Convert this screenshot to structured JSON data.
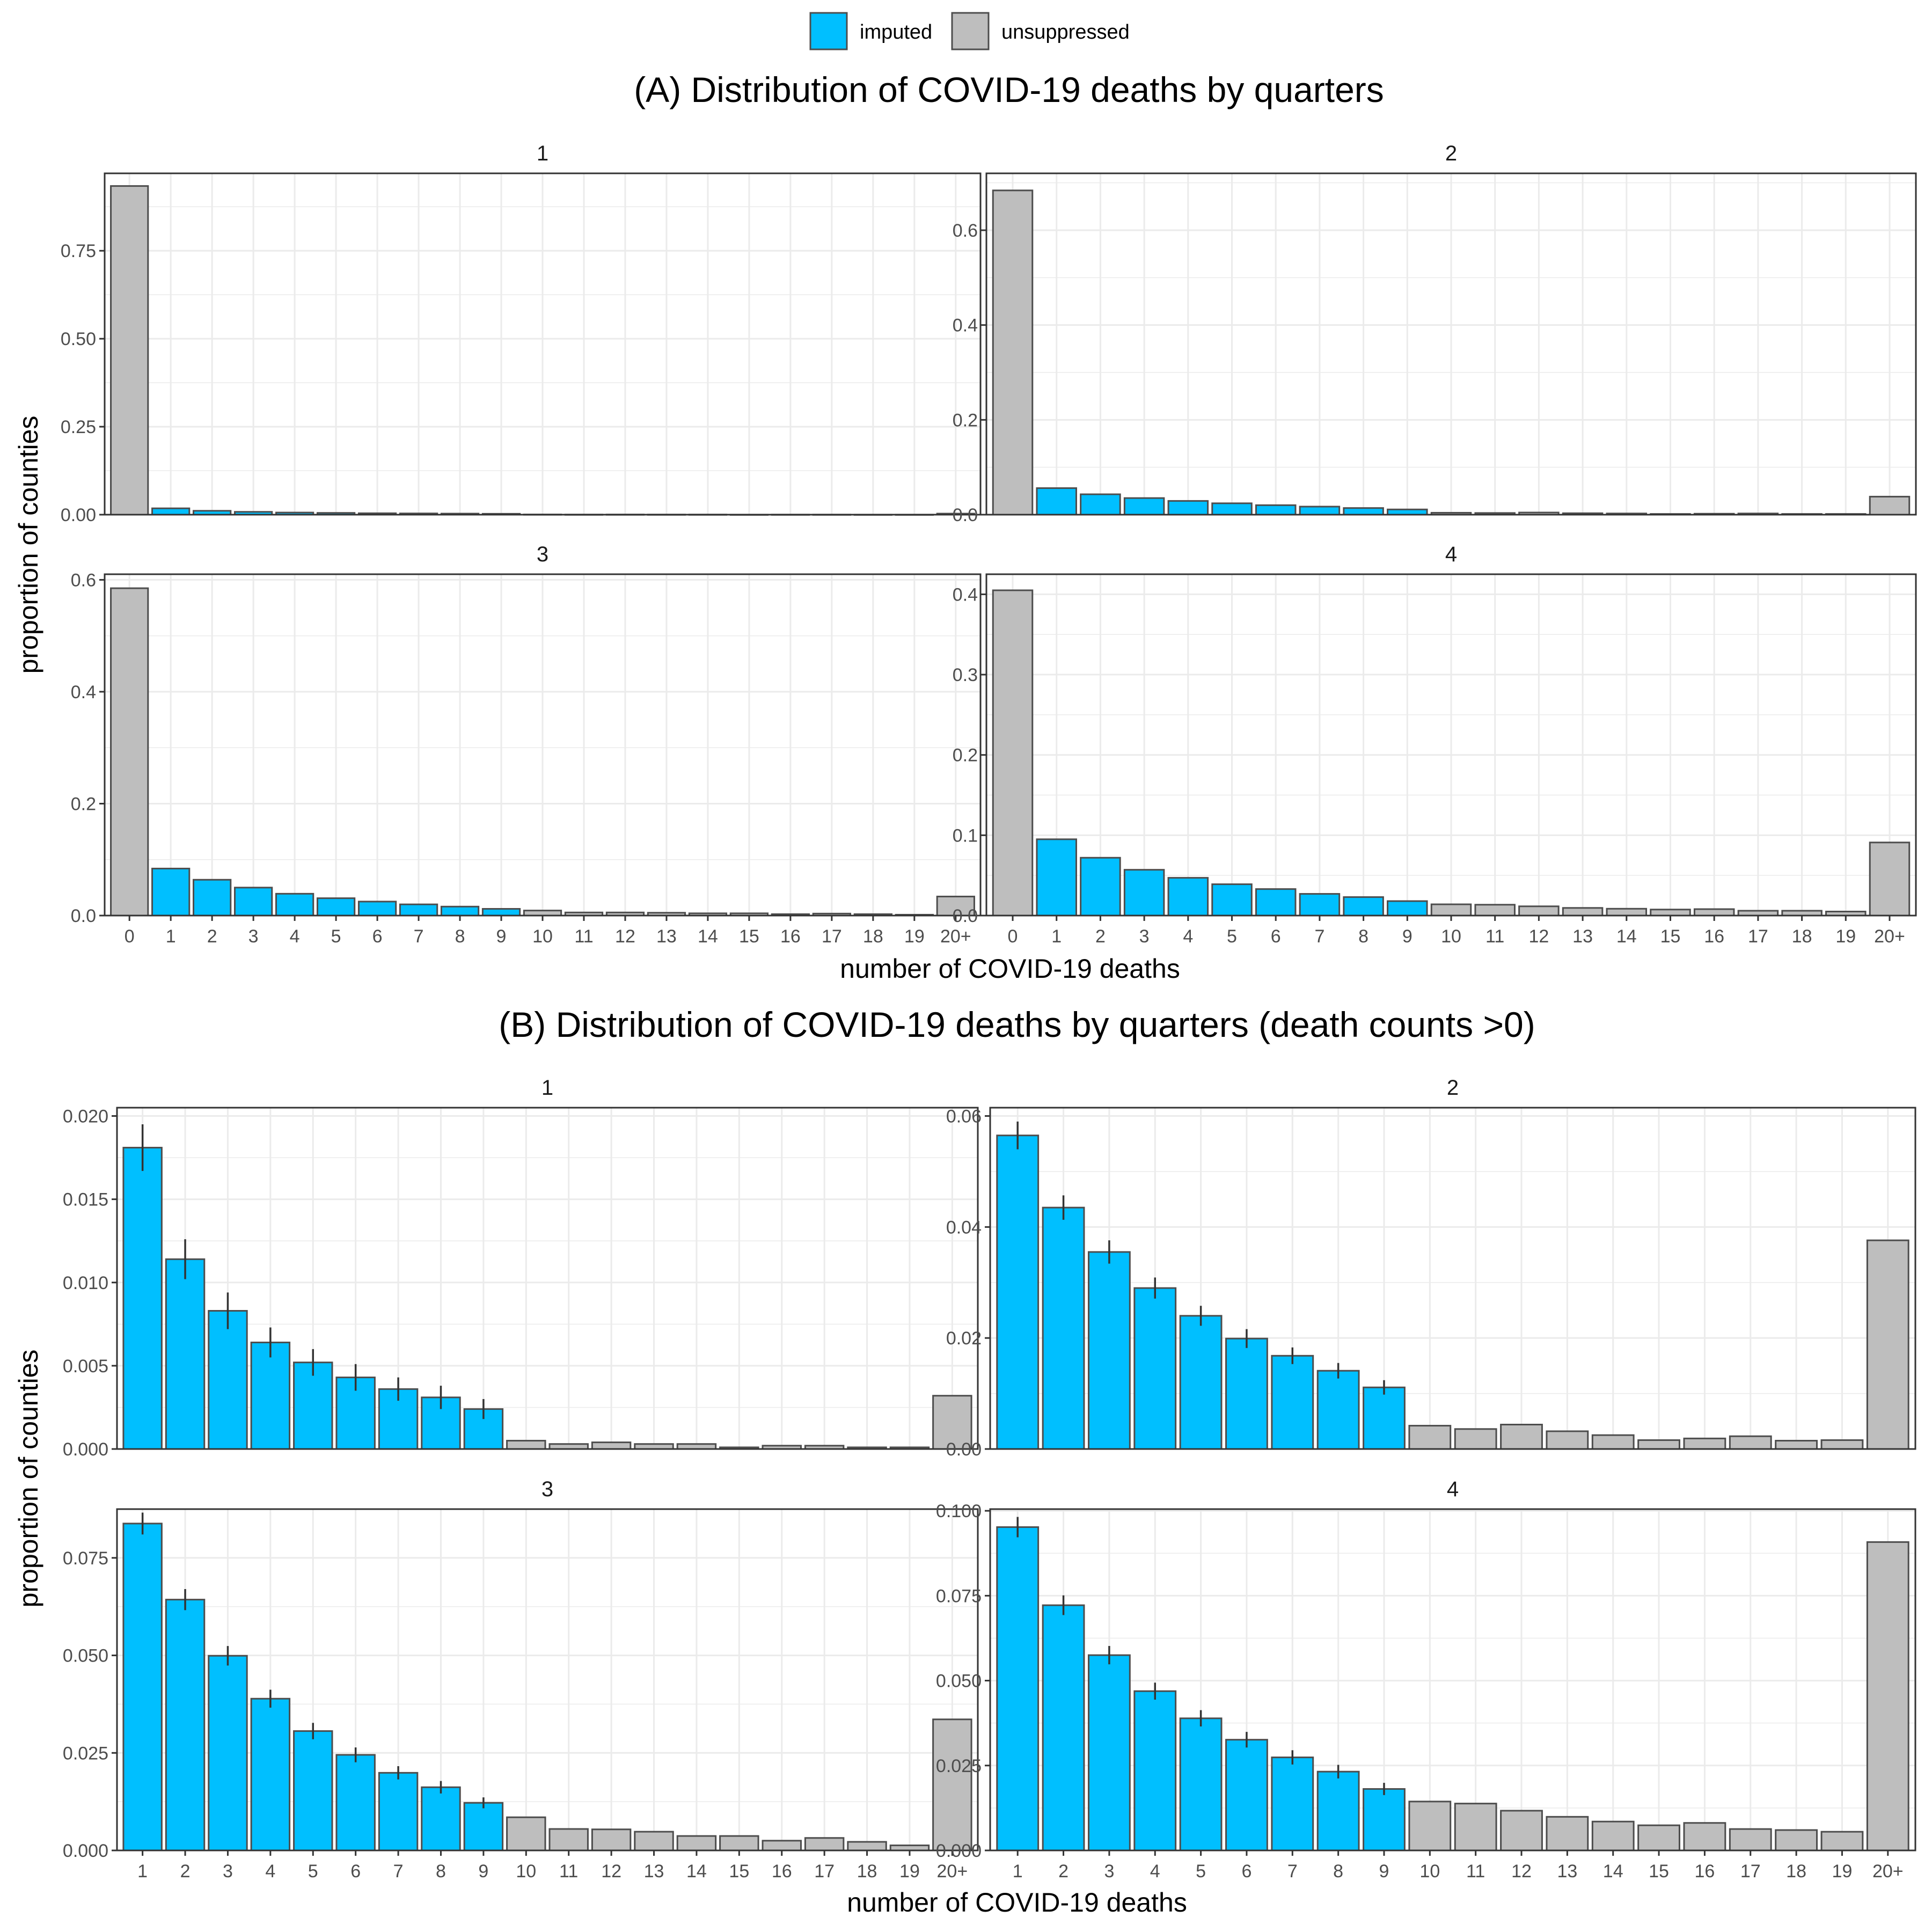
{
  "legend": {
    "items": [
      {
        "label": "imputed",
        "color": "#00BFFF"
      },
      {
        "label": "unsuppressed",
        "color": "#BEBEBE"
      }
    ]
  },
  "colors": {
    "imputed": "#00BFFF",
    "unsuppressed": "#BEBEBE",
    "bar_outline": "#4D4D4D",
    "grid": "#EBEBEB"
  },
  "shared_ylabel": "proportion of counties",
  "chart_data": [
    {
      "type": "bar",
      "title": "(A) Distribution of COVID-19 deaths by quarters",
      "xlabel": "number of COVID-19 deaths",
      "ylabel": "proportion of counties",
      "categories": [
        "0",
        "1",
        "2",
        "3",
        "4",
        "5",
        "6",
        "7",
        "8",
        "9",
        "10",
        "11",
        "12",
        "13",
        "14",
        "15",
        "16",
        "17",
        "18",
        "19",
        "20+"
      ],
      "facets": [
        {
          "label": "1",
          "ylim": [
            0,
            0.97
          ],
          "yticks": [
            0,
            0.25,
            0.5,
            0.75
          ],
          "tick_labels": [
            "0.00",
            "0.25",
            "0.50",
            "0.75"
          ],
          "values": [
            0.934,
            0.018,
            0.011,
            0.008,
            0.006,
            0.005,
            0.004,
            0.0035,
            0.003,
            0.0025,
            0.0005,
            0.0003,
            0.0004,
            0.0003,
            0.0003,
            0.0001,
            0.0002,
            0.0002,
            0.0001,
            0.0001,
            0.003
          ],
          "imputed": [
            false,
            true,
            true,
            true,
            true,
            true,
            true,
            true,
            true,
            true,
            false,
            false,
            false,
            false,
            false,
            false,
            false,
            false,
            false,
            false,
            false
          ]
        },
        {
          "label": "2",
          "ylim": [
            0,
            0.72
          ],
          "yticks": [
            0,
            0.2,
            0.4,
            0.6
          ],
          "tick_labels": [
            "0.0",
            "0.2",
            "0.4",
            "0.6"
          ],
          "values": [
            0.684,
            0.056,
            0.043,
            0.035,
            0.029,
            0.024,
            0.02,
            0.017,
            0.014,
            0.011,
            0.004,
            0.0035,
            0.0045,
            0.003,
            0.0025,
            0.0015,
            0.002,
            0.0025,
            0.0015,
            0.0015,
            0.038
          ],
          "imputed": [
            false,
            true,
            true,
            true,
            true,
            true,
            true,
            true,
            true,
            true,
            false,
            false,
            false,
            false,
            false,
            false,
            false,
            false,
            false,
            false,
            false
          ]
        },
        {
          "label": "3",
          "ylim": [
            0,
            0.61
          ],
          "yticks": [
            0,
            0.2,
            0.4,
            0.6
          ],
          "tick_labels": [
            "0.0",
            "0.2",
            "0.4",
            "0.6"
          ],
          "values": [
            0.585,
            0.084,
            0.064,
            0.05,
            0.039,
            0.031,
            0.025,
            0.02,
            0.016,
            0.012,
            0.009,
            0.0055,
            0.0055,
            0.005,
            0.004,
            0.004,
            0.0025,
            0.0035,
            0.0025,
            0.0015,
            0.034
          ],
          "imputed": [
            false,
            true,
            true,
            true,
            true,
            true,
            true,
            true,
            true,
            true,
            false,
            false,
            false,
            false,
            false,
            false,
            false,
            false,
            false,
            false,
            false
          ]
        },
        {
          "label": "4",
          "ylim": [
            0,
            0.425
          ],
          "yticks": [
            0,
            0.1,
            0.2,
            0.3,
            0.4
          ],
          "tick_labels": [
            "0.0",
            "0.1",
            "0.2",
            "0.3",
            "0.4"
          ],
          "values": [
            0.405,
            0.095,
            0.072,
            0.057,
            0.047,
            0.039,
            0.033,
            0.027,
            0.023,
            0.018,
            0.014,
            0.0135,
            0.0115,
            0.0095,
            0.0085,
            0.0075,
            0.008,
            0.006,
            0.006,
            0.005,
            0.091
          ],
          "imputed": [
            false,
            true,
            true,
            true,
            true,
            true,
            true,
            true,
            true,
            true,
            false,
            false,
            false,
            false,
            false,
            false,
            false,
            false,
            false,
            false,
            false
          ]
        }
      ]
    },
    {
      "type": "bar",
      "title": "(B) Distribution of COVID-19 deaths by quarters (death counts >0)",
      "xlabel": "number of COVID-19 deaths",
      "ylabel": "proportion of counties",
      "categories": [
        "1",
        "2",
        "3",
        "4",
        "5",
        "6",
        "7",
        "8",
        "9",
        "10",
        "11",
        "12",
        "13",
        "14",
        "15",
        "16",
        "17",
        "18",
        "19",
        "20+"
      ],
      "facets": [
        {
          "label": "1",
          "ylim": [
            0,
            0.0205
          ],
          "yticks": [
            0,
            0.005,
            0.01,
            0.015,
            0.02
          ],
          "tick_labels": [
            "0.000",
            "0.005",
            "0.010",
            "0.015",
            "0.020"
          ],
          "values": [
            0.0181,
            0.0114,
            0.0083,
            0.0064,
            0.0052,
            0.0043,
            0.0036,
            0.0031,
            0.0024,
            0.0005,
            0.0003,
            0.0004,
            0.0003,
            0.0003,
            0.0001,
            0.0002,
            0.0002,
            0.0001,
            0.0001,
            0.0032
          ],
          "error": [
            0.0014,
            0.0012,
            0.0011,
            0.0009,
            0.0008,
            0.0008,
            0.0007,
            0.0007,
            0.0006,
            null,
            null,
            null,
            null,
            null,
            null,
            null,
            null,
            null,
            null,
            null
          ],
          "imputed": [
            true,
            true,
            true,
            true,
            true,
            true,
            true,
            true,
            true,
            false,
            false,
            false,
            false,
            false,
            false,
            false,
            false,
            false,
            false,
            false
          ]
        },
        {
          "label": "2",
          "ylim": [
            0,
            0.0615
          ],
          "yticks": [
            0,
            0.02,
            0.04,
            0.06
          ],
          "tick_labels": [
            "0.00",
            "0.02",
            "0.04",
            "0.06"
          ],
          "values": [
            0.0565,
            0.0435,
            0.0355,
            0.029,
            0.024,
            0.0199,
            0.0168,
            0.0141,
            0.0111,
            0.0042,
            0.0036,
            0.0044,
            0.0032,
            0.0025,
            0.0016,
            0.0019,
            0.0023,
            0.0015,
            0.0016,
            0.0376
          ],
          "error": [
            0.0025,
            0.0022,
            0.0021,
            0.0019,
            0.0018,
            0.0017,
            0.0015,
            0.0014,
            0.0013,
            null,
            null,
            null,
            null,
            null,
            null,
            null,
            null,
            null,
            null,
            null
          ],
          "imputed": [
            true,
            true,
            true,
            true,
            true,
            true,
            true,
            true,
            true,
            false,
            false,
            false,
            false,
            false,
            false,
            false,
            false,
            false,
            false,
            false
          ]
        },
        {
          "label": "3",
          "ylim": [
            0,
            0.0875
          ],
          "yticks": [
            0,
            0.025,
            0.05,
            0.075
          ],
          "tick_labels": [
            "0.000",
            "0.025",
            "0.050",
            "0.075"
          ],
          "values": [
            0.0838,
            0.0643,
            0.0499,
            0.0389,
            0.0306,
            0.0245,
            0.0199,
            0.0162,
            0.0122,
            0.0085,
            0.0055,
            0.0054,
            0.0048,
            0.0037,
            0.0037,
            0.0025,
            0.0032,
            0.0022,
            0.0013,
            0.0336
          ],
          "error": [
            0.0028,
            0.0027,
            0.0025,
            0.0023,
            0.0021,
            0.0019,
            0.0017,
            0.0016,
            0.0014,
            null,
            null,
            null,
            null,
            null,
            null,
            null,
            null,
            null,
            null,
            null
          ],
          "imputed": [
            true,
            true,
            true,
            true,
            true,
            true,
            true,
            true,
            true,
            false,
            false,
            false,
            false,
            false,
            false,
            false,
            false,
            false,
            false,
            false
          ]
        },
        {
          "label": "4",
          "ylim": [
            0,
            0.1005
          ],
          "yticks": [
            0,
            0.025,
            0.05,
            0.075,
            0.1
          ],
          "tick_labels": [
            "0.000",
            "0.025",
            "0.050",
            "0.075",
            "0.100"
          ],
          "values": [
            0.0952,
            0.0722,
            0.0575,
            0.0469,
            0.0389,
            0.0326,
            0.0274,
            0.0232,
            0.0181,
            0.0144,
            0.0138,
            0.0117,
            0.0099,
            0.0085,
            0.0074,
            0.0081,
            0.0063,
            0.006,
            0.0055,
            0.0908
          ],
          "error": [
            0.003,
            0.0029,
            0.0027,
            0.0025,
            0.0024,
            0.0023,
            0.0021,
            0.002,
            0.0018,
            null,
            null,
            null,
            null,
            null,
            null,
            null,
            null,
            null,
            null,
            null
          ],
          "imputed": [
            true,
            true,
            true,
            true,
            true,
            true,
            true,
            true,
            true,
            false,
            false,
            false,
            false,
            false,
            false,
            false,
            false,
            false,
            false,
            false
          ]
        }
      ]
    }
  ]
}
